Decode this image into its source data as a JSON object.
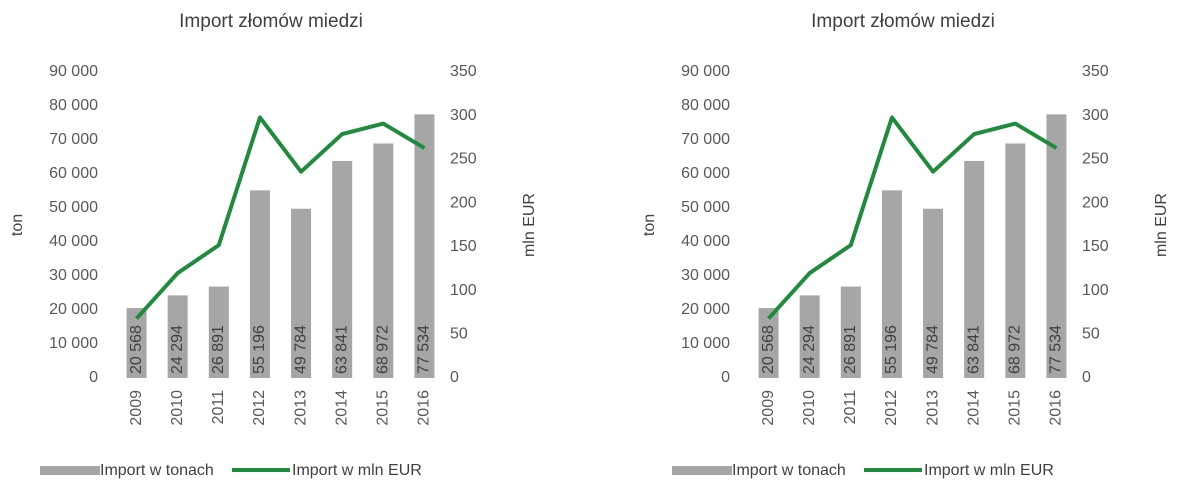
{
  "chart_data": [
    {
      "type": "bar-line",
      "title": "Import złomów miedzi",
      "y_label": "ton",
      "y2_label": "mln EUR",
      "categories": [
        "2009",
        "2010",
        "2011",
        "2012",
        "2013",
        "2014",
        "2015",
        "2016"
      ],
      "series": [
        {
          "name": "Import w tonach",
          "color": "#a6a6a6",
          "type": "bar",
          "values": [
            20568,
            24294,
            26891,
            55196,
            49784,
            63841,
            68972,
            77534
          ],
          "value_labels": [
            "20 568",
            "24 294",
            "26 891",
            "55 196",
            "49 784",
            "63 841",
            "68 972",
            "77 534"
          ]
        },
        {
          "name": "Import w mln EUR",
          "color": "#1e8c3c",
          "type": "line",
          "axis": "y2",
          "values": [
            68,
            120,
            152,
            298,
            236,
            279,
            291,
            263
          ]
        }
      ],
      "ylim": [
        0,
        90000
      ],
      "yticks": [
        0,
        {
          "value": 10000,
          "label": "10 000"
        },
        {
          "value": 20000,
          "label": "20 000"
        },
        {
          "value": 30000,
          "label": "30 000"
        },
        {
          "value": 40000,
          "label": "40 000"
        },
        {
          "value": 50000,
          "label": "50 000"
        },
        {
          "value": 60000,
          "label": "60 000"
        },
        {
          "value": 70000,
          "label": "70 000"
        },
        {
          "value": 80000,
          "label": "80 000"
        },
        {
          "value": 90000,
          "label": "90 000"
        }
      ],
      "y2lim": [
        0,
        350
      ],
      "y2ticks": [
        0,
        50,
        100,
        150,
        200,
        250,
        300,
        350
      ]
    },
    {
      "type": "bar-line",
      "title": "Import złomów miedzi",
      "y_label": "ton",
      "y2_label": "mln EUR",
      "categories": [
        "2009",
        "2010",
        "2011",
        "2012",
        "2013",
        "2014",
        "2015",
        "2016"
      ],
      "series": [
        {
          "name": "Import w tonach",
          "color": "#a6a6a6",
          "type": "bar",
          "values": [
            20568,
            24294,
            26891,
            55196,
            49784,
            63841,
            68972,
            77534
          ],
          "value_labels": [
            "20 568",
            "24 294",
            "26 891",
            "55 196",
            "49 784",
            "63 841",
            "68 972",
            "77 534"
          ]
        },
        {
          "name": "Import w mln EUR",
          "color": "#1e8c3c",
          "type": "line",
          "axis": "y2",
          "values": [
            68,
            120,
            152,
            298,
            236,
            279,
            291,
            263
          ]
        }
      ],
      "ylim": [
        0,
        90000
      ],
      "yticks": [
        0,
        {
          "value": 10000,
          "label": "10 000"
        },
        {
          "value": 20000,
          "label": "20 000"
        },
        {
          "value": 30000,
          "label": "30 000"
        },
        {
          "value": 40000,
          "label": "40 000"
        },
        {
          "value": 50000,
          "label": "50 000"
        },
        {
          "value": 60000,
          "label": "60 000"
        },
        {
          "value": 70000,
          "label": "70 000"
        },
        {
          "value": 80000,
          "label": "80 000"
        },
        {
          "value": 90000,
          "label": "90 000"
        }
      ],
      "y2lim": [
        0,
        350
      ],
      "y2ticks": [
        0,
        50,
        100,
        150,
        200,
        250,
        300,
        350
      ]
    }
  ]
}
